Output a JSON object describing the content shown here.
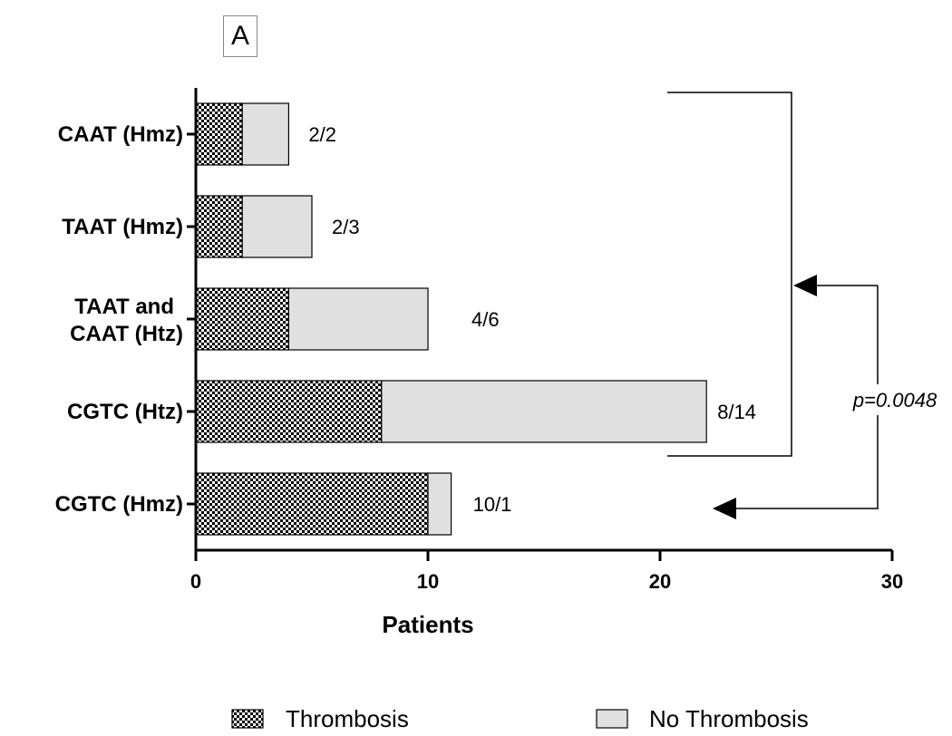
{
  "panel_label": "A",
  "chart_data": {
    "type": "bar",
    "orientation": "horizontal",
    "stacked": true,
    "categories": [
      "CAAT (Hmz)",
      "TAAT (Hmz)",
      "TAAT and CAAT (Htz)",
      "CGTC (Htz)",
      "CGTC (Hmz)"
    ],
    "series": [
      {
        "name": "Thrombosis",
        "values": [
          2,
          2,
          4,
          8,
          10
        ],
        "pattern": "checkered"
      },
      {
        "name": "No Thrombosis",
        "values": [
          2,
          3,
          6,
          14,
          1
        ],
        "color": "#e0e0e0"
      }
    ],
    "data_labels": [
      "2/2",
      "2/3",
      "4/6",
      "8/14",
      "10/1"
    ],
    "xlabel": "Patients",
    "ylabel": "",
    "xlim": [
      0,
      30
    ],
    "xticks": [
      "0",
      "10",
      "20",
      "30"
    ],
    "grid": false,
    "legend_position": "bottom",
    "annotation": {
      "text": "p=0.0048",
      "compares": [
        "CAAT (Hmz)–CGTC (Htz) group",
        "CGTC (Hmz)"
      ]
    }
  }
}
